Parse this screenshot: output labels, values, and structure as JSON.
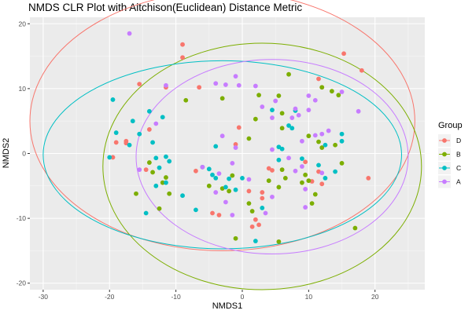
{
  "chart_data": {
    "type": "scatter",
    "title": "NMDS CLR Plot with Aitchison(Euclidean) Distance Metric",
    "xlabel": "NMDS1",
    "ylabel": "NMDS2",
    "xlim": [
      -32,
      27.5
    ],
    "ylim": [
      -21,
      21
    ],
    "x_ticks": [
      -30,
      -20,
      -10,
      0,
      10,
      20
    ],
    "y_ticks": [
      -20,
      -10,
      0,
      10,
      20
    ],
    "x_tick_labels": [
      "-30",
      "-20",
      "-10",
      "0",
      "10",
      "20"
    ],
    "y_tick_labels": [
      "-20",
      "-10",
      "0",
      "10",
      "20"
    ],
    "grid": true,
    "legend": {
      "title": "Group",
      "placement": "right"
    },
    "ellipses": true,
    "series": [
      {
        "name": "D",
        "color": "#F8766D",
        "ellipse": {
          "cx": -3.0,
          "cy": 5.0,
          "rx": 29.0,
          "ry": 20.0,
          "angle": 0
        },
        "points": [
          [
            -9,
            16.8
          ],
          [
            -9,
            14.8
          ],
          [
            15.3,
            15.4
          ],
          [
            18,
            12.8
          ],
          [
            11.5,
            11.5
          ],
          [
            12,
            10.2
          ],
          [
            -15.5,
            10.7
          ],
          [
            -11.5,
            10.2
          ],
          [
            -6.5,
            10.2
          ],
          [
            -14,
            3.7
          ],
          [
            -17.5,
            1.9
          ],
          [
            -19,
            1.7
          ],
          [
            -17.5,
            1.6
          ],
          [
            -19.5,
            -0.6
          ],
          [
            -0.5,
            4.0
          ],
          [
            -1,
            1.4
          ],
          [
            -7,
            -2.7
          ],
          [
            -14.5,
            -2.5
          ],
          [
            4.5,
            -2.6
          ],
          [
            1,
            -5.8
          ],
          [
            3,
            -6.0
          ],
          [
            -4.5,
            -9.2
          ],
          [
            -3.5,
            -9.5
          ],
          [
            2.5,
            -11.0
          ],
          [
            1.5,
            -11.3
          ],
          [
            10.5,
            -4.3
          ],
          [
            12,
            -4.7
          ],
          [
            19,
            -3.8
          ],
          [
            11.5,
            -2.8
          ],
          [
            9.5,
            -1.3
          ],
          [
            4,
            -2.3
          ],
          [
            3,
            -6.9
          ],
          [
            2,
            -10.2
          ]
        ]
      },
      {
        "name": "B",
        "color": "#7CAE00",
        "ellipse": {
          "cx": 3.0,
          "cy": -2.0,
          "rx": 24.0,
          "ry": 19.0,
          "angle": 0
        },
        "points": [
          [
            7,
            12.2
          ],
          [
            12,
            10.2
          ],
          [
            13.5,
            9.6
          ],
          [
            14.5,
            9.0
          ],
          [
            -8.5,
            8.2
          ],
          [
            -3,
            8.5
          ],
          [
            5.5,
            8.9
          ],
          [
            6,
            6.2
          ],
          [
            1,
            2.3
          ],
          [
            6,
            3.9
          ],
          [
            2,
            5.3
          ],
          [
            -14,
            -1.4
          ],
          [
            -13.5,
            -2.9
          ],
          [
            -11.5,
            -3.7
          ],
          [
            -12,
            -4.5
          ],
          [
            -16,
            -6.2
          ],
          [
            -11,
            -6.2
          ],
          [
            -12.5,
            -8.5
          ],
          [
            -5,
            -5.0
          ],
          [
            -3,
            -5.4
          ],
          [
            -2,
            -5.8
          ],
          [
            -1.5,
            -3.4
          ],
          [
            6,
            -2.5
          ],
          [
            6.5,
            -3.8
          ],
          [
            5.5,
            -5.2
          ],
          [
            4,
            -4.2
          ],
          [
            9,
            -4.5
          ],
          [
            10,
            -4.2
          ],
          [
            11,
            -6.3
          ],
          [
            10.5,
            -7.7
          ],
          [
            1,
            -7.7
          ],
          [
            1.5,
            -8.9
          ],
          [
            5.5,
            -13.6
          ],
          [
            17,
            -11.5
          ],
          [
            -1,
            -13.1
          ],
          [
            10,
            2.7
          ],
          [
            11.5,
            1.8
          ],
          [
            12,
            0.9
          ],
          [
            14,
            1.3
          ],
          [
            15,
            -1.5
          ],
          [
            9.5,
            -3.3
          ],
          [
            2.5,
            9.0
          ]
        ]
      },
      {
        "name": "C",
        "color": "#00BFC4",
        "ellipse": {
          "cx": -3.0,
          "cy": -0.2,
          "rx": 27.0,
          "ry": 14.5,
          "angle": 0
        },
        "points": [
          [
            -19.5,
            8.3
          ],
          [
            -19,
            3.2
          ],
          [
            -20,
            -0.6
          ],
          [
            -17,
            1.3
          ],
          [
            -16.5,
            5.0
          ],
          [
            -14,
            6.5
          ],
          [
            -15.5,
            3.0
          ],
          [
            -13.5,
            1.7
          ],
          [
            -13,
            -0.7
          ],
          [
            -12.5,
            -2.2
          ],
          [
            -11.5,
            -0.5
          ],
          [
            -11,
            -1.2
          ],
          [
            -11.5,
            -4.5
          ],
          [
            -9,
            -6.5
          ],
          [
            -13,
            -5.0
          ],
          [
            -7,
            -8.7
          ],
          [
            -6,
            -2.1
          ],
          [
            -5,
            -2.4
          ],
          [
            -4.5,
            -3.3
          ],
          [
            -4,
            -3.8
          ],
          [
            -2,
            -3.9
          ],
          [
            -2.5,
            -5.2
          ],
          [
            -1,
            -5.6
          ],
          [
            0,
            -3.8
          ],
          [
            -14.5,
            -9.2
          ],
          [
            4.5,
            6.7
          ],
          [
            8,
            6.6
          ],
          [
            7.5,
            3.9
          ],
          [
            6,
            0.7
          ],
          [
            5.5,
            -1.0
          ],
          [
            9,
            -0.8
          ],
          [
            12.5,
            1.3
          ],
          [
            15,
            1.9
          ],
          [
            15,
            3.0
          ],
          [
            14,
            -2.8
          ],
          [
            11.5,
            -1.8
          ],
          [
            12.5,
            -3.8
          ],
          [
            2,
            -13.5
          ],
          [
            3,
            -8.4
          ],
          [
            5.5,
            1.0
          ],
          [
            -12,
            5.6
          ],
          [
            -4,
            1.1
          ],
          [
            7,
            4.3
          ]
        ]
      },
      {
        "name": "A",
        "color": "#C77CFF",
        "ellipse": {
          "cx": 4.5,
          "cy": -0.5,
          "rx": 20.5,
          "ry": 15.0,
          "angle": 0
        },
        "points": [
          [
            -17,
            18.5
          ],
          [
            -1,
            11.9
          ],
          [
            -4,
            10.8
          ],
          [
            -2.5,
            10.6
          ],
          [
            -0.5,
            10.5
          ],
          [
            2,
            10.4
          ],
          [
            -11.5,
            10.5
          ],
          [
            5,
            8.1
          ],
          [
            -13,
            4.6
          ],
          [
            10,
            8.9
          ],
          [
            15,
            9.5
          ],
          [
            17.5,
            6.5
          ],
          [
            8,
            6.9
          ],
          [
            8.5,
            5.9
          ],
          [
            7.5,
            5.5
          ],
          [
            4.5,
            5.5
          ],
          [
            11,
            8.2
          ],
          [
            12,
            3.0
          ],
          [
            10,
            6.7
          ],
          [
            9,
            1.9
          ],
          [
            13,
            3.5
          ],
          [
            4.5,
            0.6
          ],
          [
            7,
            -0.7
          ],
          [
            8,
            -2.7
          ],
          [
            9,
            -2.0
          ],
          [
            12,
            -3.0
          ],
          [
            -3.5,
            -3.1
          ],
          [
            -6,
            -2.1
          ],
          [
            -15.5,
            -2.5
          ],
          [
            -1.5,
            -1.5
          ],
          [
            -1,
            0.9
          ],
          [
            1,
            -4.0
          ],
          [
            -4,
            -6.0
          ],
          [
            -2.5,
            -7.5
          ],
          [
            4.5,
            -6.7
          ],
          [
            9.5,
            -8.3
          ],
          [
            -1.5,
            -9.5
          ],
          [
            3.5,
            -9.2
          ],
          [
            9.5,
            -5.5
          ],
          [
            11,
            2.8
          ],
          [
            -3,
            2.7
          ],
          [
            3,
            7.2
          ]
        ]
      }
    ]
  }
}
